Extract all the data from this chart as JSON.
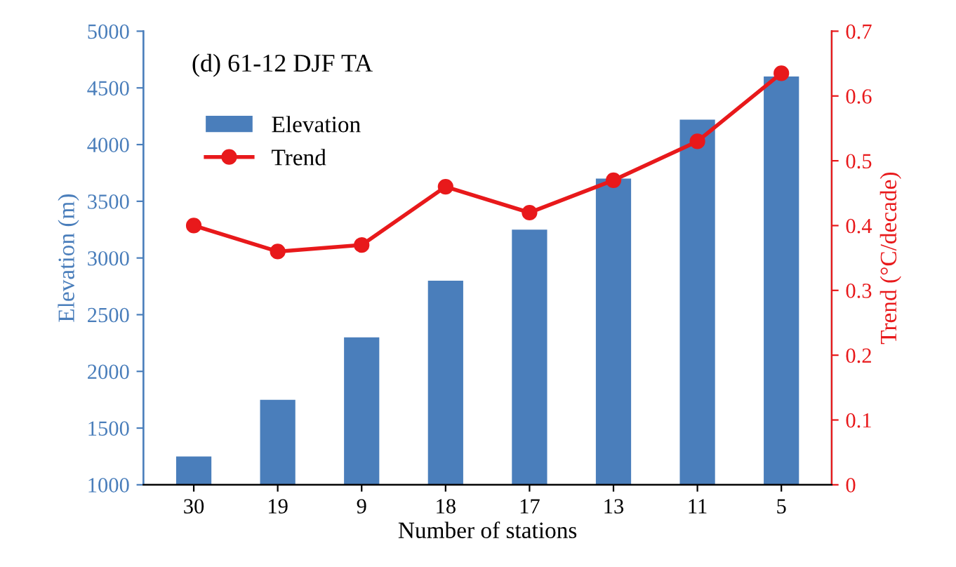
{
  "chart_data": {
    "type": "bar",
    "title": "(d) 61-12 DJF TA",
    "xlabel": "Number of stations",
    "ylabel": "Elevation (m)",
    "y2label": "Trend (°C/decade)",
    "categories": [
      "30",
      "19",
      "9",
      "18",
      "17",
      "13",
      "11",
      "5"
    ],
    "series": [
      {
        "name": "Elevation",
        "color": "#4a7ebb",
        "values": [
          1250,
          1750,
          2300,
          2800,
          3250,
          3700,
          4220,
          4600
        ]
      },
      {
        "name": "Trend",
        "type": "line",
        "axis": "y2",
        "color": "#e8191b",
        "marker": "circle",
        "values": [
          0.4,
          0.36,
          0.37,
          0.46,
          0.42,
          0.47,
          0.53,
          0.635
        ]
      }
    ],
    "ylim": [
      1000,
      5000
    ],
    "yticks": [
      1000,
      1500,
      2000,
      2500,
      3000,
      3500,
      4000,
      4500,
      5000
    ],
    "y2lim": [
      0,
      0.7
    ],
    "y2ticks": [
      0,
      0.1,
      0.2,
      0.3,
      0.4,
      0.5,
      0.6,
      0.7
    ],
    "legend": "top left",
    "grid": false
  }
}
